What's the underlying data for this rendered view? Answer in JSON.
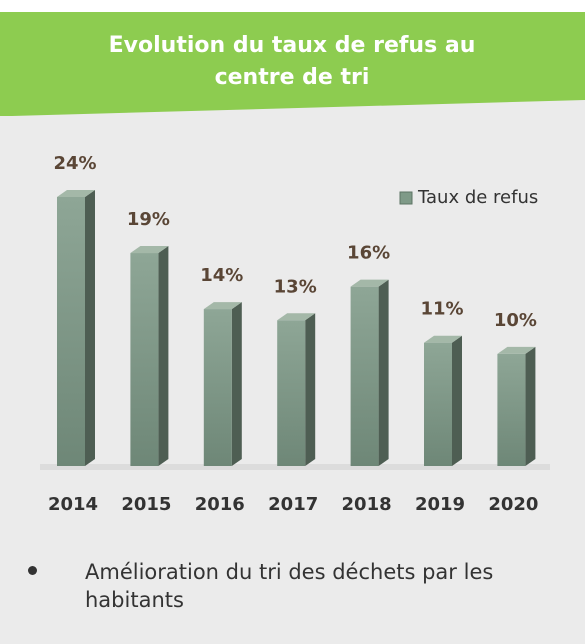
{
  "chart_data": {
    "type": "bar",
    "title": "Evolution du taux de refus au centre de tri",
    "categories": [
      "2014",
      "2015",
      "2016",
      "2017",
      "2018",
      "2019",
      "2020"
    ],
    "series": [
      {
        "name": "Taux de refus",
        "color": "#7f9a88",
        "values": [
          24,
          19,
          14,
          13,
          16,
          11,
          10
        ],
        "value_labels": [
          "24%",
          "19%",
          "14%",
          "13%",
          "16%",
          "11%",
          "10%"
        ]
      }
    ],
    "legend": "top-right",
    "annotations": [
      "Amélioration du tri des déchets par les habitants"
    ]
  }
}
